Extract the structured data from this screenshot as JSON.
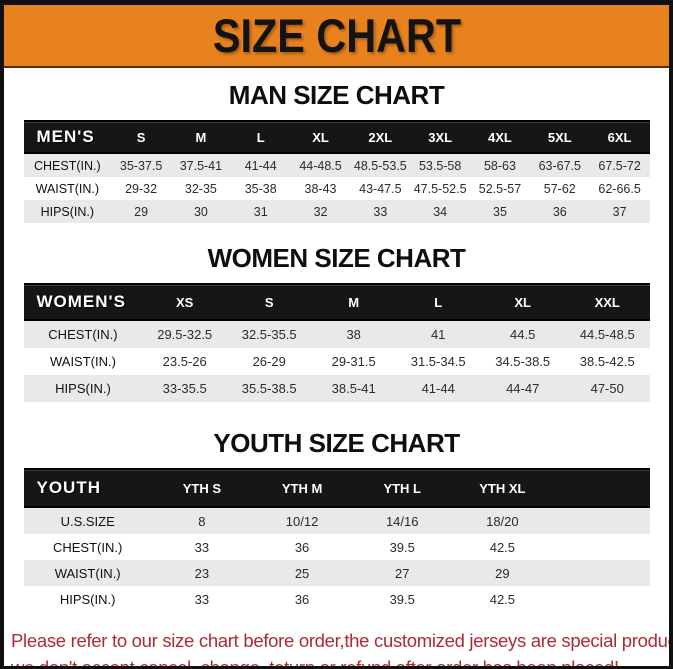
{
  "page": {
    "title": "SIZE CHART"
  },
  "colors": {
    "banner_orange": "#E8821E",
    "table_header_black": "#161616",
    "stripe_gray": "#e9e9e9",
    "footer_red": "#B02A33"
  },
  "sections": [
    {
      "id": "men",
      "title": "MAN SIZE CHART",
      "header_label": "MEN'S",
      "columns": [
        "S",
        "M",
        "L",
        "XL",
        "2XL",
        "3XL",
        "4XL",
        "5XL",
        "6XL"
      ],
      "rows": [
        {
          "label": "CHEST(IN.)",
          "values": [
            "35-37.5",
            "37.5-41",
            "41-44",
            "44-48.5",
            "48.5-53.5",
            "53.5-58",
            "58-63",
            "63-67.5",
            "67.5-72"
          ]
        },
        {
          "label": "WAIST(IN.)",
          "values": [
            "29-32",
            "32-35",
            "35-38",
            "38-43",
            "43-47.5",
            "47.5-52.5",
            "52.5-57",
            "57-62",
            "62-66.5"
          ]
        },
        {
          "label": "HIPS(IN.)",
          "values": [
            "29",
            "30",
            "31",
            "32",
            "33",
            "34",
            "35",
            "36",
            "37"
          ]
        }
      ]
    },
    {
      "id": "women",
      "title": "WOMEN SIZE CHART",
      "header_label": "WOMEN'S",
      "columns": [
        "XS",
        "S",
        "M",
        "L",
        "XL",
        "XXL"
      ],
      "rows": [
        {
          "label": "CHEST(IN.)",
          "values": [
            "29.5-32.5",
            "32.5-35.5",
            "38",
            "41",
            "44.5",
            "44.5-48.5"
          ]
        },
        {
          "label": "WAIST(IN.)",
          "values": [
            "23.5-26",
            "26-29",
            "29-31.5",
            "31.5-34.5",
            "34.5-38.5",
            "38.5-42.5"
          ]
        },
        {
          "label": "HIPS(IN.)",
          "values": [
            "33-35.5",
            "35.5-38.5",
            "38.5-41",
            "41-44",
            "44-47",
            "47-50"
          ]
        }
      ]
    },
    {
      "id": "youth",
      "title": "YOUTH SIZE CHART",
      "header_label": "YOUTH",
      "columns": [
        "YTH S",
        "YTH M",
        "YTH L",
        "YTH XL"
      ],
      "rows": [
        {
          "label": "U.S.SIZE",
          "values": [
            "8",
            "10/12",
            "14/16",
            "18/20"
          ]
        },
        {
          "label": "CHEST(IN.)",
          "values": [
            "33",
            "36",
            "39.5",
            "42.5"
          ]
        },
        {
          "label": "WAIST(IN.)",
          "values": [
            "23",
            "25",
            "27",
            "29"
          ]
        },
        {
          "label": "HIPS(IN.)",
          "values": [
            "33",
            "36",
            "39.5",
            "42.5"
          ]
        }
      ]
    }
  ],
  "footer": {
    "line1": "Please refer to our size chart before order,the customized jerseys are special products,",
    "line2": "we don't accept cancel, change, teturn or refund after order has been placed!"
  }
}
